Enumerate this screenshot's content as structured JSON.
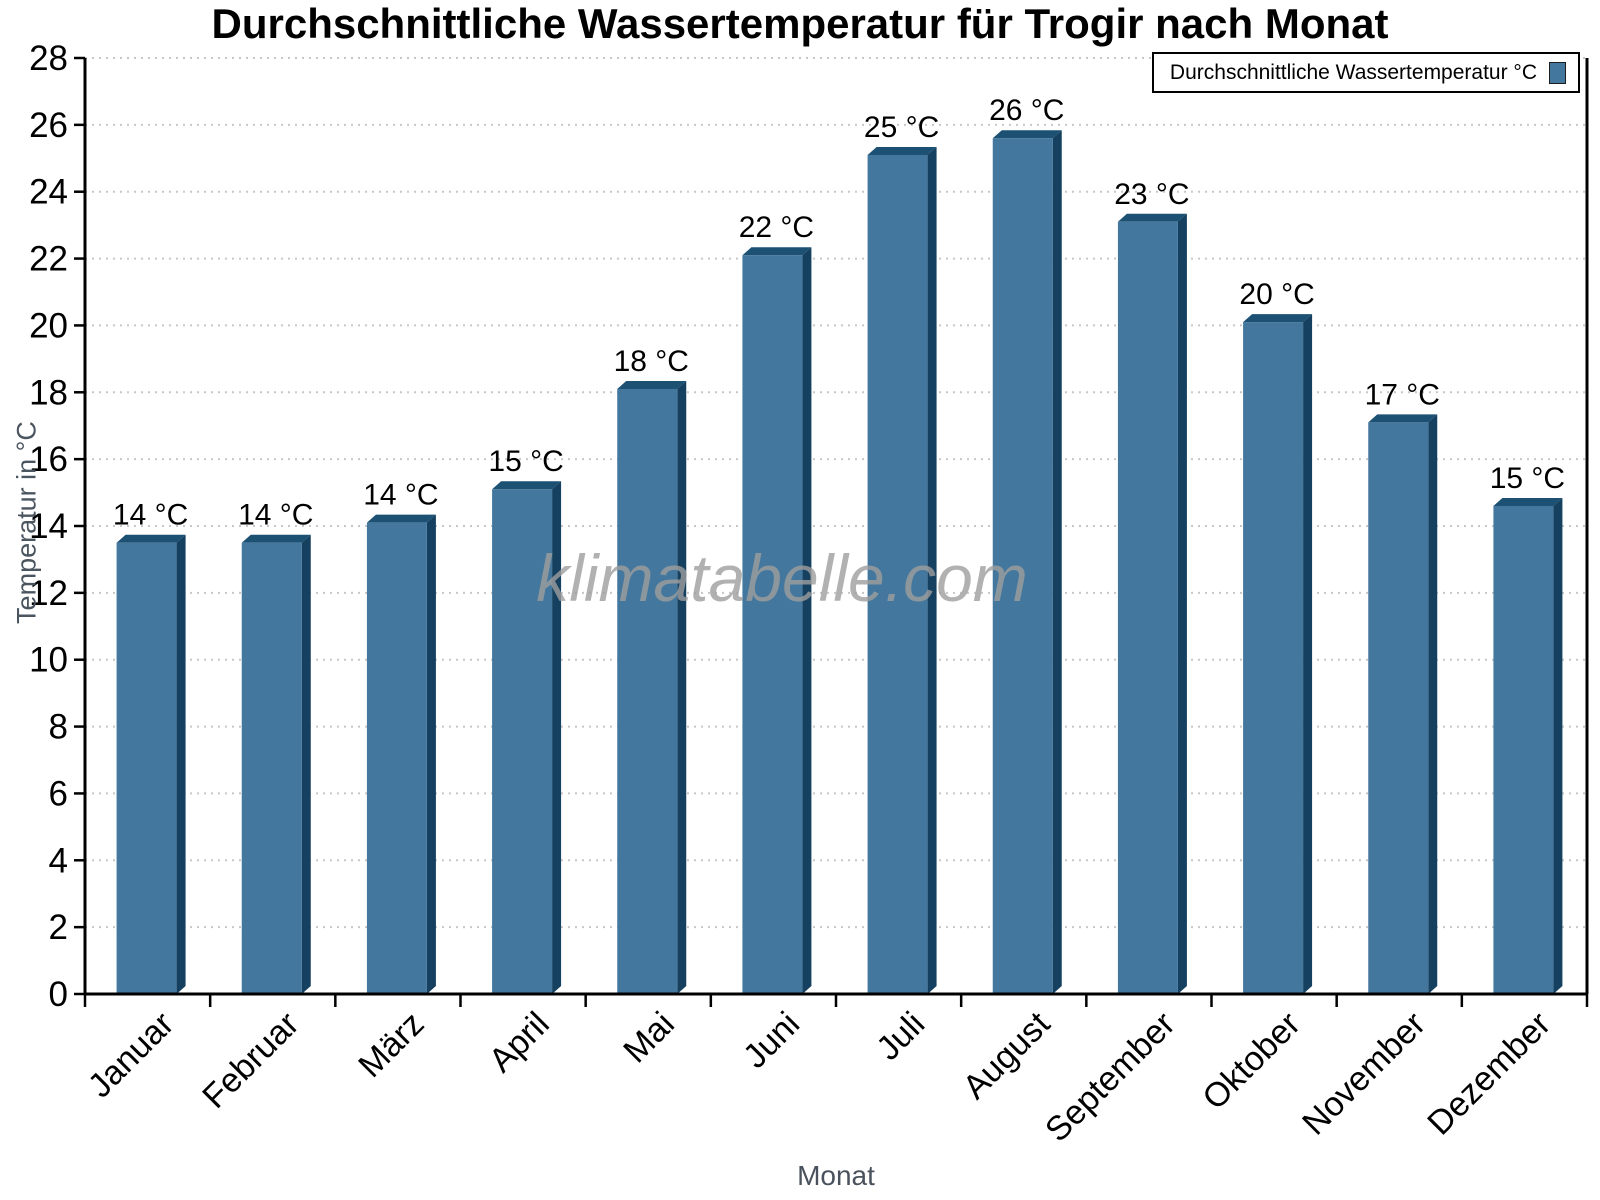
{
  "watermark": "klimatabelle.com",
  "chart_data": {
    "type": "bar",
    "title": "Durchschnittliche Wassertemperatur für Trogir nach Monat",
    "categories": [
      "Januar",
      "Februar",
      "März",
      "April",
      "Mai",
      "Juni",
      "Juli",
      "August",
      "September",
      "Oktober",
      "November",
      "Dezember"
    ],
    "values": [
      13.5,
      13.5,
      14.1,
      15.1,
      18.1,
      22.1,
      25.1,
      25.6,
      23.1,
      20.1,
      17.1,
      14.6
    ],
    "labels": [
      "14 °C",
      "14 °C",
      "14 °C",
      "15 °C",
      "18 °C",
      "22 °C",
      "25 °C",
      "26 °C",
      "23 °C",
      "20 °C",
      "17 °C",
      "15 °C"
    ],
    "xlabel": "Monat",
    "ylabel": "Temperatur in °C",
    "ylim": [
      0,
      28
    ],
    "ytick_step": 2,
    "grid": "horizontal-dotted",
    "legend": {
      "label": "Durchschnittliche Wassertemperatur °C",
      "position": "top-right"
    },
    "colors": {
      "bar_face": "#44779D",
      "bar_top": "#1D5174",
      "bar_side": "#16405F",
      "gridline": "#c7c7c7",
      "axis": "#000000",
      "axis_title_text": "#4b5560",
      "watermark_text": "#9e9e9e"
    }
  }
}
